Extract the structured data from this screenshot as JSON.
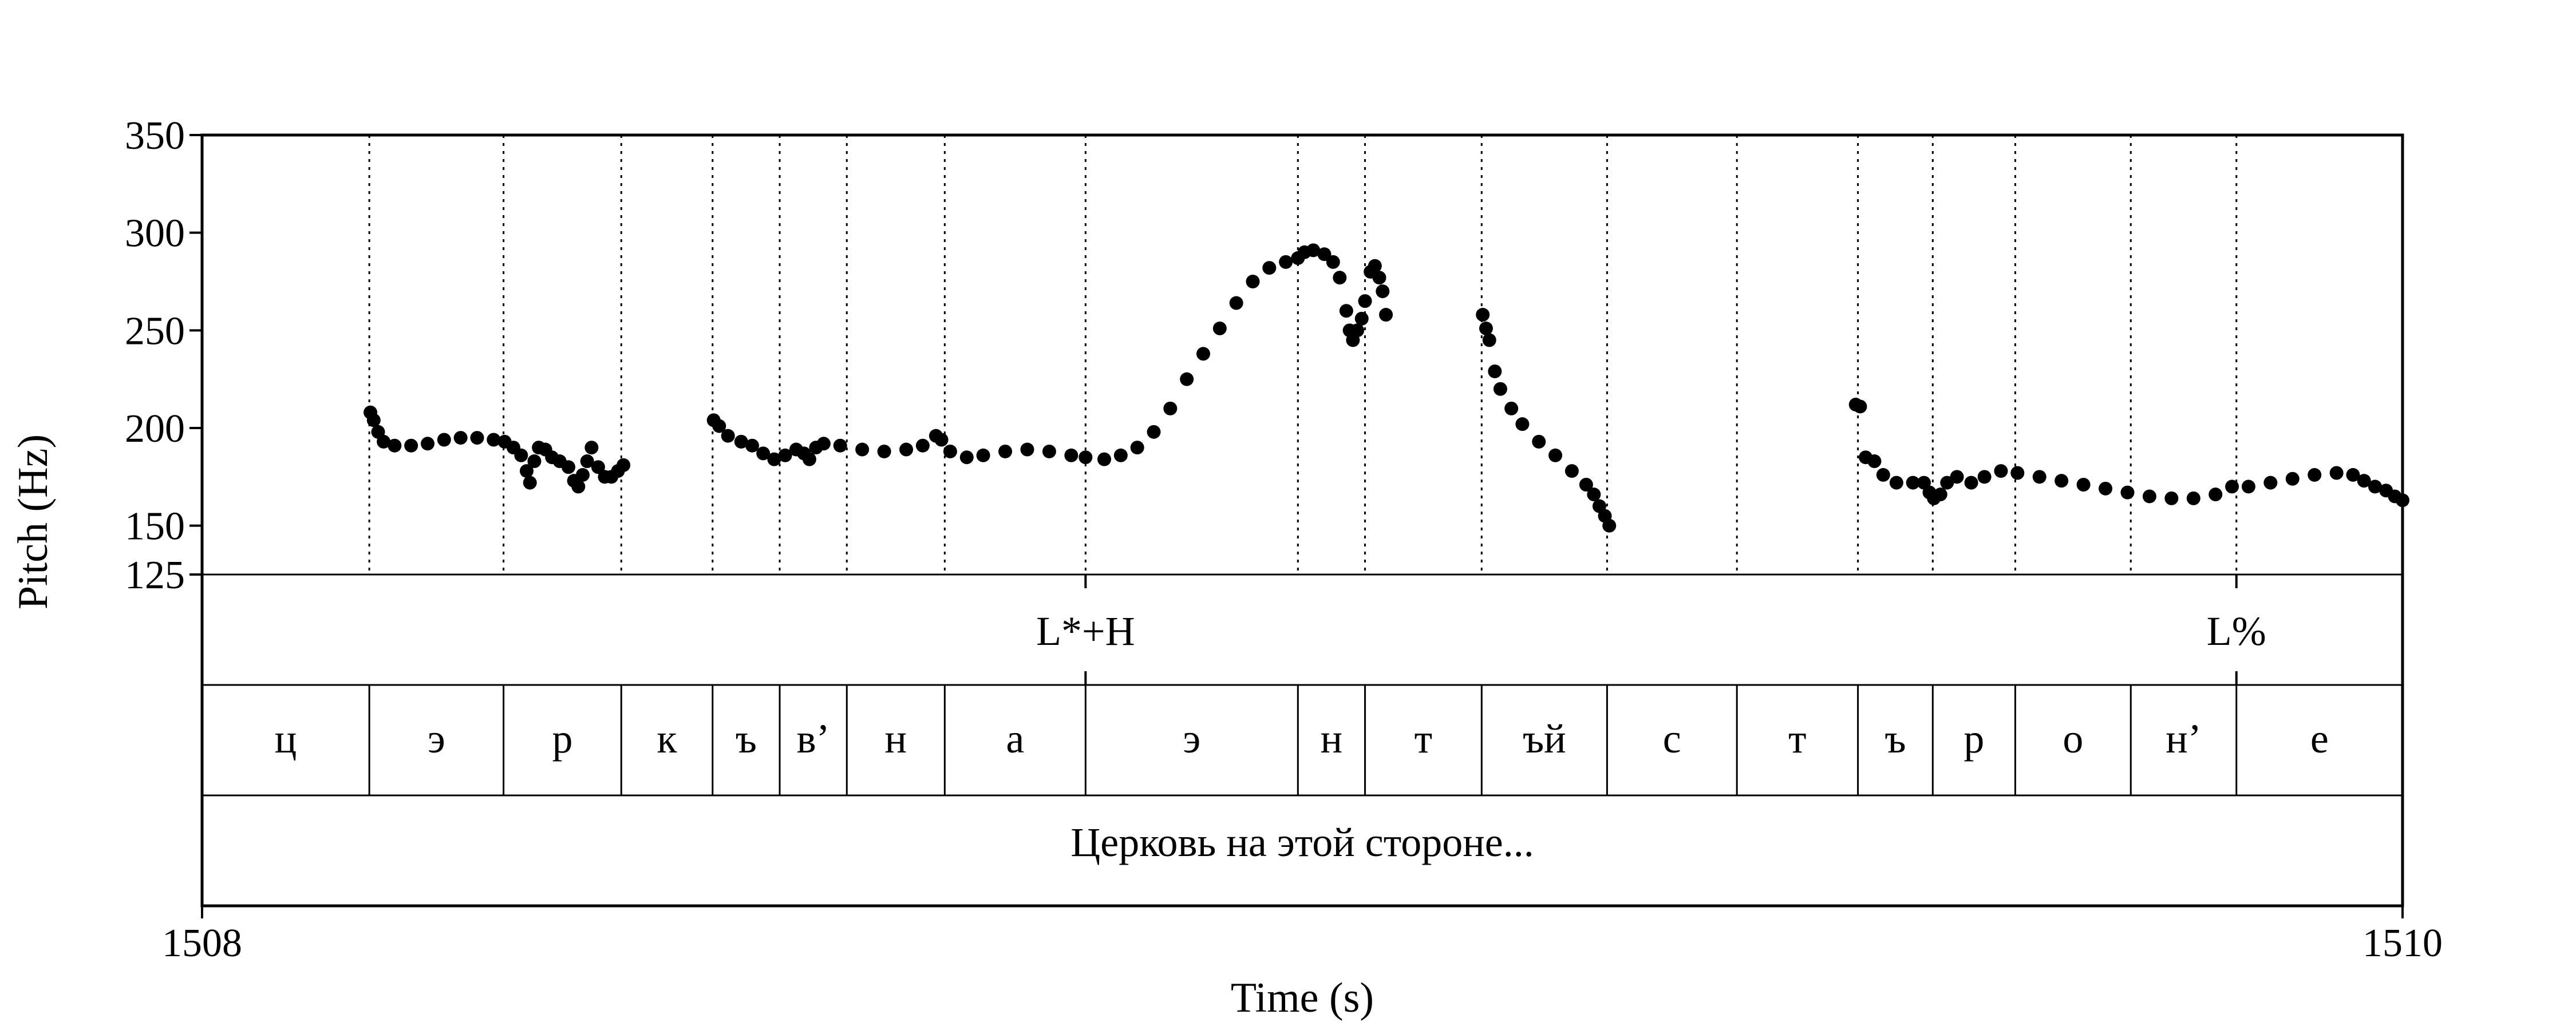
{
  "chart_data": {
    "type": "scatter",
    "xlabel": "Time (s)",
    "ylabel": "Pitch (Hz)",
    "xlim": [
      1508,
      1510
    ],
    "ylim": [
      125,
      350
    ],
    "x_ticks": [
      {
        "value": 1508,
        "label": "1508"
      },
      {
        "value": 1510,
        "label": "1510"
      }
    ],
    "y_ticks": [
      {
        "value": 350,
        "label": "350"
      },
      {
        "value": 300,
        "label": "300"
      },
      {
        "value": 250,
        "label": "250"
      },
      {
        "value": 200,
        "label": "200"
      },
      {
        "value": 150,
        "label": "150"
      },
      {
        "value": 125,
        "label": "125"
      }
    ],
    "segments": [
      {
        "label": "ц",
        "start": 1508.0,
        "end": 1508.152
      },
      {
        "label": "э",
        "start": 1508.152,
        "end": 1508.274
      },
      {
        "label": "р",
        "start": 1508.274,
        "end": 1508.381
      },
      {
        "label": "к",
        "start": 1508.381,
        "end": 1508.464
      },
      {
        "label": "ъ",
        "start": 1508.464,
        "end": 1508.525
      },
      {
        "label": "в’",
        "start": 1508.525,
        "end": 1508.586
      },
      {
        "label": "н",
        "start": 1508.586,
        "end": 1508.675
      },
      {
        "label": "а",
        "start": 1508.675,
        "end": 1508.803
      },
      {
        "label": "э",
        "start": 1508.803,
        "end": 1508.996
      },
      {
        "label": "н",
        "start": 1508.996,
        "end": 1509.057
      },
      {
        "label": "т",
        "start": 1509.057,
        "end": 1509.163
      },
      {
        "label": "ъй",
        "start": 1509.163,
        "end": 1509.277
      },
      {
        "label": "с",
        "start": 1509.277,
        "end": 1509.395
      },
      {
        "label": "т",
        "start": 1509.395,
        "end": 1509.505
      },
      {
        "label": "ъ",
        "start": 1509.505,
        "end": 1509.573
      },
      {
        "label": "р",
        "start": 1509.573,
        "end": 1509.648
      },
      {
        "label": "о",
        "start": 1509.648,
        "end": 1509.753
      },
      {
        "label": "н’",
        "start": 1509.753,
        "end": 1509.849
      },
      {
        "label": "е",
        "start": 1509.849,
        "end": 1510.0
      }
    ],
    "tones": [
      {
        "label": "L*+H",
        "time": 1508.803
      },
      {
        "label": "L%",
        "time": 1509.849
      }
    ],
    "sentence": "Церковь на этой стороне...",
    "pitch_contours": [
      [
        [
          1508.153,
          208
        ],
        [
          1508.156,
          204
        ],
        [
          1508.16,
          198
        ],
        [
          1508.165,
          193
        ],
        [
          1508.175,
          191
        ],
        [
          1508.19,
          191
        ],
        [
          1508.205,
          192
        ],
        [
          1508.22,
          194
        ],
        [
          1508.235,
          195
        ],
        [
          1508.25,
          195
        ],
        [
          1508.265,
          194
        ],
        [
          1508.275,
          193
        ],
        [
          1508.283,
          190
        ],
        [
          1508.29,
          186
        ],
        [
          1508.295,
          178
        ],
        [
          1508.298,
          172
        ],
        [
          1508.302,
          183
        ],
        [
          1508.306,
          190
        ],
        [
          1508.312,
          189
        ],
        [
          1508.318,
          185
        ],
        [
          1508.325,
          183
        ],
        [
          1508.333,
          180
        ],
        [
          1508.338,
          173
        ],
        [
          1508.342,
          170
        ],
        [
          1508.346,
          176
        ],
        [
          1508.35,
          183
        ],
        [
          1508.354,
          190
        ],
        [
          1508.36,
          180
        ],
        [
          1508.366,
          175
        ],
        [
          1508.372,
          175
        ],
        [
          1508.378,
          178
        ],
        [
          1508.383,
          181
        ]
      ],
      [
        [
          1508.465,
          204
        ],
        [
          1508.47,
          201
        ],
        [
          1508.478,
          196
        ],
        [
          1508.49,
          193
        ],
        [
          1508.5,
          191
        ],
        [
          1508.51,
          187
        ],
        [
          1508.52,
          184
        ],
        [
          1508.53,
          186
        ],
        [
          1508.54,
          189
        ],
        [
          1508.547,
          187
        ],
        [
          1508.552,
          184
        ],
        [
          1508.558,
          190
        ],
        [
          1508.565,
          192
        ],
        [
          1508.58,
          191
        ],
        [
          1508.6,
          189
        ],
        [
          1508.62,
          188
        ],
        [
          1508.64,
          189
        ],
        [
          1508.655,
          191
        ],
        [
          1508.667,
          196
        ],
        [
          1508.672,
          194
        ],
        [
          1508.68,
          188
        ],
        [
          1508.695,
          185
        ],
        [
          1508.71,
          186
        ],
        [
          1508.73,
          188
        ],
        [
          1508.75,
          189
        ],
        [
          1508.77,
          188
        ],
        [
          1508.79,
          186
        ],
        [
          1508.803,
          185
        ],
        [
          1508.82,
          184
        ],
        [
          1508.835,
          186
        ],
        [
          1508.85,
          190
        ],
        [
          1508.865,
          198
        ],
        [
          1508.88,
          210
        ],
        [
          1508.895,
          225
        ],
        [
          1508.91,
          238
        ],
        [
          1508.925,
          251
        ],
        [
          1508.94,
          264
        ],
        [
          1508.955,
          275
        ],
        [
          1508.97,
          282
        ],
        [
          1508.985,
          285
        ],
        [
          1508.996,
          287
        ],
        [
          1509.002,
          290
        ],
        [
          1509.01,
          291
        ],
        [
          1509.02,
          289
        ],
        [
          1509.028,
          285
        ],
        [
          1509.034,
          277
        ],
        [
          1509.04,
          260
        ],
        [
          1509.043,
          250
        ],
        [
          1509.046,
          245
        ],
        [
          1509.05,
          250
        ],
        [
          1509.054,
          256
        ],
        [
          1509.057,
          265
        ],
        [
          1509.062,
          280
        ],
        [
          1509.066,
          283
        ],
        [
          1509.07,
          277
        ],
        [
          1509.073,
          270
        ],
        [
          1509.076,
          258
        ]
      ],
      [
        [
          1509.164,
          258
        ],
        [
          1509.167,
          251
        ],
        [
          1509.17,
          245
        ],
        [
          1509.175,
          229
        ],
        [
          1509.18,
          220
        ],
        [
          1509.19,
          210
        ],
        [
          1509.2,
          202
        ],
        [
          1509.215,
          193
        ],
        [
          1509.23,
          186
        ],
        [
          1509.245,
          178
        ],
        [
          1509.258,
          171
        ],
        [
          1509.265,
          166
        ],
        [
          1509.27,
          160
        ],
        [
          1509.275,
          155
        ],
        [
          1509.279,
          150
        ]
      ],
      [
        [
          1509.503,
          212
        ],
        [
          1509.507,
          211
        ],
        [
          1509.512,
          185
        ],
        [
          1509.52,
          183
        ],
        [
          1509.528,
          176
        ],
        [
          1509.54,
          172
        ],
        [
          1509.555,
          172
        ],
        [
          1509.565,
          172
        ],
        [
          1509.57,
          167
        ],
        [
          1509.574,
          164
        ],
        [
          1509.58,
          166
        ],
        [
          1509.586,
          172
        ],
        [
          1509.595,
          175
        ],
        [
          1509.608,
          172
        ],
        [
          1509.62,
          175
        ],
        [
          1509.635,
          178
        ],
        [
          1509.65,
          177
        ],
        [
          1509.67,
          175
        ],
        [
          1509.69,
          173
        ],
        [
          1509.71,
          171
        ],
        [
          1509.73,
          169
        ],
        [
          1509.75,
          167
        ],
        [
          1509.77,
          165
        ],
        [
          1509.79,
          164
        ],
        [
          1509.81,
          164
        ],
        [
          1509.83,
          166
        ],
        [
          1509.845,
          170
        ],
        [
          1509.86,
          170
        ],
        [
          1509.88,
          172
        ],
        [
          1509.9,
          174
        ],
        [
          1509.92,
          176
        ],
        [
          1509.94,
          177
        ],
        [
          1509.955,
          176
        ],
        [
          1509.965,
          173
        ],
        [
          1509.975,
          170
        ],
        [
          1509.985,
          168
        ],
        [
          1509.993,
          165
        ],
        [
          1510.0,
          163
        ]
      ]
    ]
  }
}
